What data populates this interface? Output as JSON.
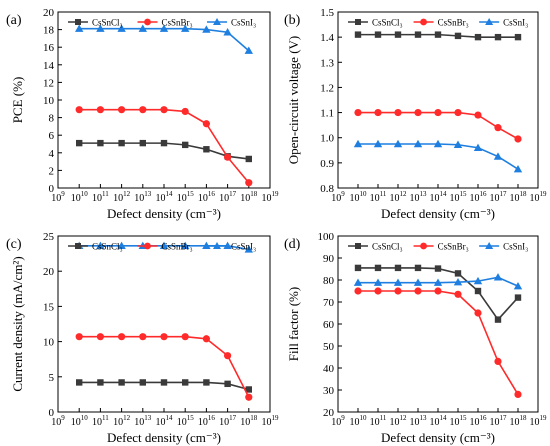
{
  "chart_data": [
    {
      "panel_label": "(a)",
      "type": "line",
      "xlabel": "Defect density (cm⁻³)",
      "ylabel": "PCE (%)",
      "x_log_range": [
        9,
        19
      ],
      "x_ticks": [
        9,
        10,
        11,
        12,
        13,
        14,
        15,
        16,
        17,
        18,
        19
      ],
      "ylim": [
        0,
        20
      ],
      "y_ticks": [
        0,
        2,
        4,
        6,
        8,
        10,
        12,
        14,
        16,
        18,
        20
      ],
      "x": [
        10000000000.0,
        100000000000.0,
        1000000000000.0,
        10000000000000.0,
        100000000000000.0,
        1000000000000000.0,
        1e+16,
        1e+17,
        1e+18
      ],
      "series": [
        {
          "name": "CsSnCl₃",
          "color": "#3a3a3a",
          "marker": "square",
          "values": [
            5.1,
            5.1,
            5.1,
            5.1,
            5.1,
            4.9,
            4.4,
            3.6,
            3.3
          ]
        },
        {
          "name": "CsSnBr₃",
          "color": "#ff2a2a",
          "marker": "circle",
          "values": [
            8.9,
            8.9,
            8.9,
            8.9,
            8.9,
            8.7,
            7.3,
            3.5,
            0.6
          ]
        },
        {
          "name": "CsSnI₃",
          "color": "#1e7fe0",
          "marker": "triangle",
          "values": [
            18.1,
            18.1,
            18.1,
            18.1,
            18.1,
            18.1,
            18.0,
            17.7,
            15.6
          ]
        }
      ],
      "legend_position": "top-center"
    },
    {
      "panel_label": "(b)",
      "type": "line",
      "xlabel": "Defect density (cm⁻³)",
      "ylabel": "Open-circuit voltage (V)",
      "x_log_range": [
        9,
        19
      ],
      "x_ticks": [
        9,
        10,
        11,
        12,
        13,
        14,
        15,
        16,
        17,
        18,
        19
      ],
      "ylim": [
        0.8,
        1.5
      ],
      "y_ticks": [
        0.8,
        0.9,
        1.0,
        1.1,
        1.2,
        1.3,
        1.4,
        1.5
      ],
      "x": [
        10000000000.0,
        100000000000.0,
        1000000000000.0,
        10000000000000.0,
        100000000000000.0,
        1000000000000000.0,
        1e+16,
        1e+17,
        1e+18
      ],
      "series": [
        {
          "name": "CsSnCl₃",
          "color": "#3a3a3a",
          "marker": "square",
          "values": [
            1.41,
            1.41,
            1.41,
            1.41,
            1.41,
            1.405,
            1.4,
            1.4,
            1.4
          ]
        },
        {
          "name": "CsSnBr₃",
          "color": "#ff2a2a",
          "marker": "circle",
          "values": [
            1.1,
            1.1,
            1.1,
            1.1,
            1.1,
            1.1,
            1.09,
            1.04,
            0.995
          ]
        },
        {
          "name": "CsSnI₃",
          "color": "#1e7fe0",
          "marker": "triangle",
          "values": [
            0.975,
            0.975,
            0.975,
            0.975,
            0.975,
            0.972,
            0.96,
            0.925,
            0.875
          ]
        }
      ],
      "legend_position": "top-center"
    },
    {
      "panel_label": "(c)",
      "type": "line",
      "xlabel": "Defect density (cm⁻³)",
      "ylabel": "Current density (mA/cm²)",
      "x_log_range": [
        9,
        19
      ],
      "x_ticks": [
        9,
        10,
        11,
        12,
        13,
        14,
        15,
        16,
        17,
        18,
        19
      ],
      "ylim": [
        0,
        25
      ],
      "y_ticks": [
        0,
        5,
        10,
        15,
        20,
        25
      ],
      "x": [
        10000000000.0,
        100000000000.0,
        1000000000000.0,
        10000000000000.0,
        100000000000000.0,
        1000000000000000.0,
        1e+16,
        1e+17,
        1e+18
      ],
      "series": [
        {
          "name": "CsSnCl₃",
          "color": "#3a3a3a",
          "marker": "square",
          "values": [
            4.2,
            4.2,
            4.2,
            4.2,
            4.2,
            4.2,
            4.2,
            4.0,
            3.2
          ]
        },
        {
          "name": "CsSnBr₃",
          "color": "#ff2a2a",
          "marker": "circle",
          "values": [
            10.7,
            10.7,
            10.7,
            10.7,
            10.7,
            10.7,
            10.4,
            8.0,
            2.1
          ]
        },
        {
          "name": "CsSnI₃",
          "color": "#1e7fe0",
          "marker": "triangle",
          "values": [
            23.6,
            23.6,
            23.6,
            23.6,
            23.6,
            23.6,
            23.6,
            23.6,
            23.1
          ]
        }
      ],
      "legend_position": "top-center"
    },
    {
      "panel_label": "(d)",
      "type": "line",
      "xlabel": "Defect density (cm⁻³)",
      "ylabel": "Fill factor (%)",
      "x_log_range": [
        9,
        19
      ],
      "x_ticks": [
        9,
        10,
        11,
        12,
        13,
        14,
        15,
        16,
        17,
        18,
        19
      ],
      "ylim": [
        20,
        100
      ],
      "y_ticks": [
        20,
        30,
        40,
        50,
        60,
        70,
        80,
        90,
        100
      ],
      "x": [
        10000000000.0,
        100000000000.0,
        1000000000000.0,
        10000000000000.0,
        100000000000000.0,
        1000000000000000.0,
        1e+16,
        1e+17,
        1e+18
      ],
      "series": [
        {
          "name": "CsSnCl₃",
          "color": "#3a3a3a",
          "marker": "square",
          "values": [
            85.5,
            85.5,
            85.5,
            85.5,
            85.2,
            83,
            75,
            62,
            72
          ]
        },
        {
          "name": "CsSnBr₃",
          "color": "#ff2a2a",
          "marker": "circle",
          "values": [
            75,
            75,
            75,
            75,
            75,
            73.5,
            65,
            43,
            28
          ]
        },
        {
          "name": "CsSnI₃",
          "color": "#1e7fe0",
          "marker": "triangle",
          "values": [
            78.8,
            78.8,
            78.8,
            78.8,
            78.8,
            79,
            79.5,
            81.2,
            77.2
          ]
        }
      ],
      "legend_position": "top-center"
    }
  ]
}
